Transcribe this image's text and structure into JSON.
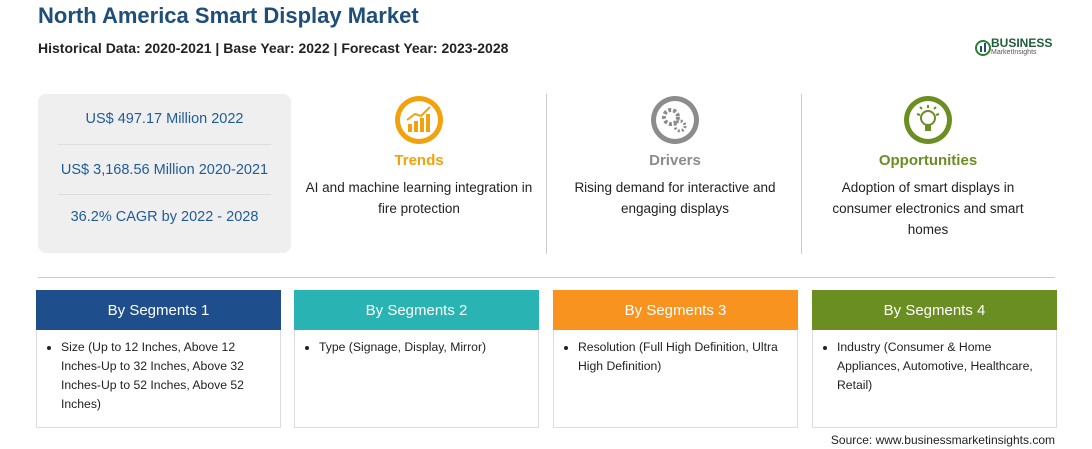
{
  "header": {
    "title": "North America Smart Display Market",
    "subtitle": "Historical Data: 2020-2021 | Base Year: 2022 | Forecast Year: 2023-2028"
  },
  "logo": {
    "name": "BUSINESS",
    "tagline": "MarketInsights"
  },
  "stats": [
    "US$ 497.17 Million 2022",
    "US$ 3,168.56 Million 2020-2021",
    "36.2% CAGR by 2022 - 2028"
  ],
  "factors": [
    {
      "title": "Trends",
      "text": "AI and machine learning integration in fire protection"
    },
    {
      "title": "Drivers",
      "text": "Rising demand for interactive and engaging displays"
    },
    {
      "title": "Opportunities",
      "text": "Adoption of smart displays in consumer electronics and smart homes"
    }
  ],
  "segments": [
    {
      "title": "By Segments 1",
      "items": [
        "Size (Up to 12 Inches, Above 12 Inches-Up to 32 Inches, Above 32 Inches-Up to 52 Inches, Above 52 Inches)"
      ]
    },
    {
      "title": "By Segments 2",
      "items": [
        "Type (Signage, Display, Mirror)"
      ]
    },
    {
      "title": "By Segments 3",
      "items": [
        "Resolution (Full High Definition, Ultra High Definition)"
      ]
    },
    {
      "title": "By Segments 4",
      "items": [
        "Industry (Consumer & Home Appliances, Automotive, Healthcare, Retail)"
      ]
    }
  ],
  "source": "Source: www.businessmarketinsights.com"
}
